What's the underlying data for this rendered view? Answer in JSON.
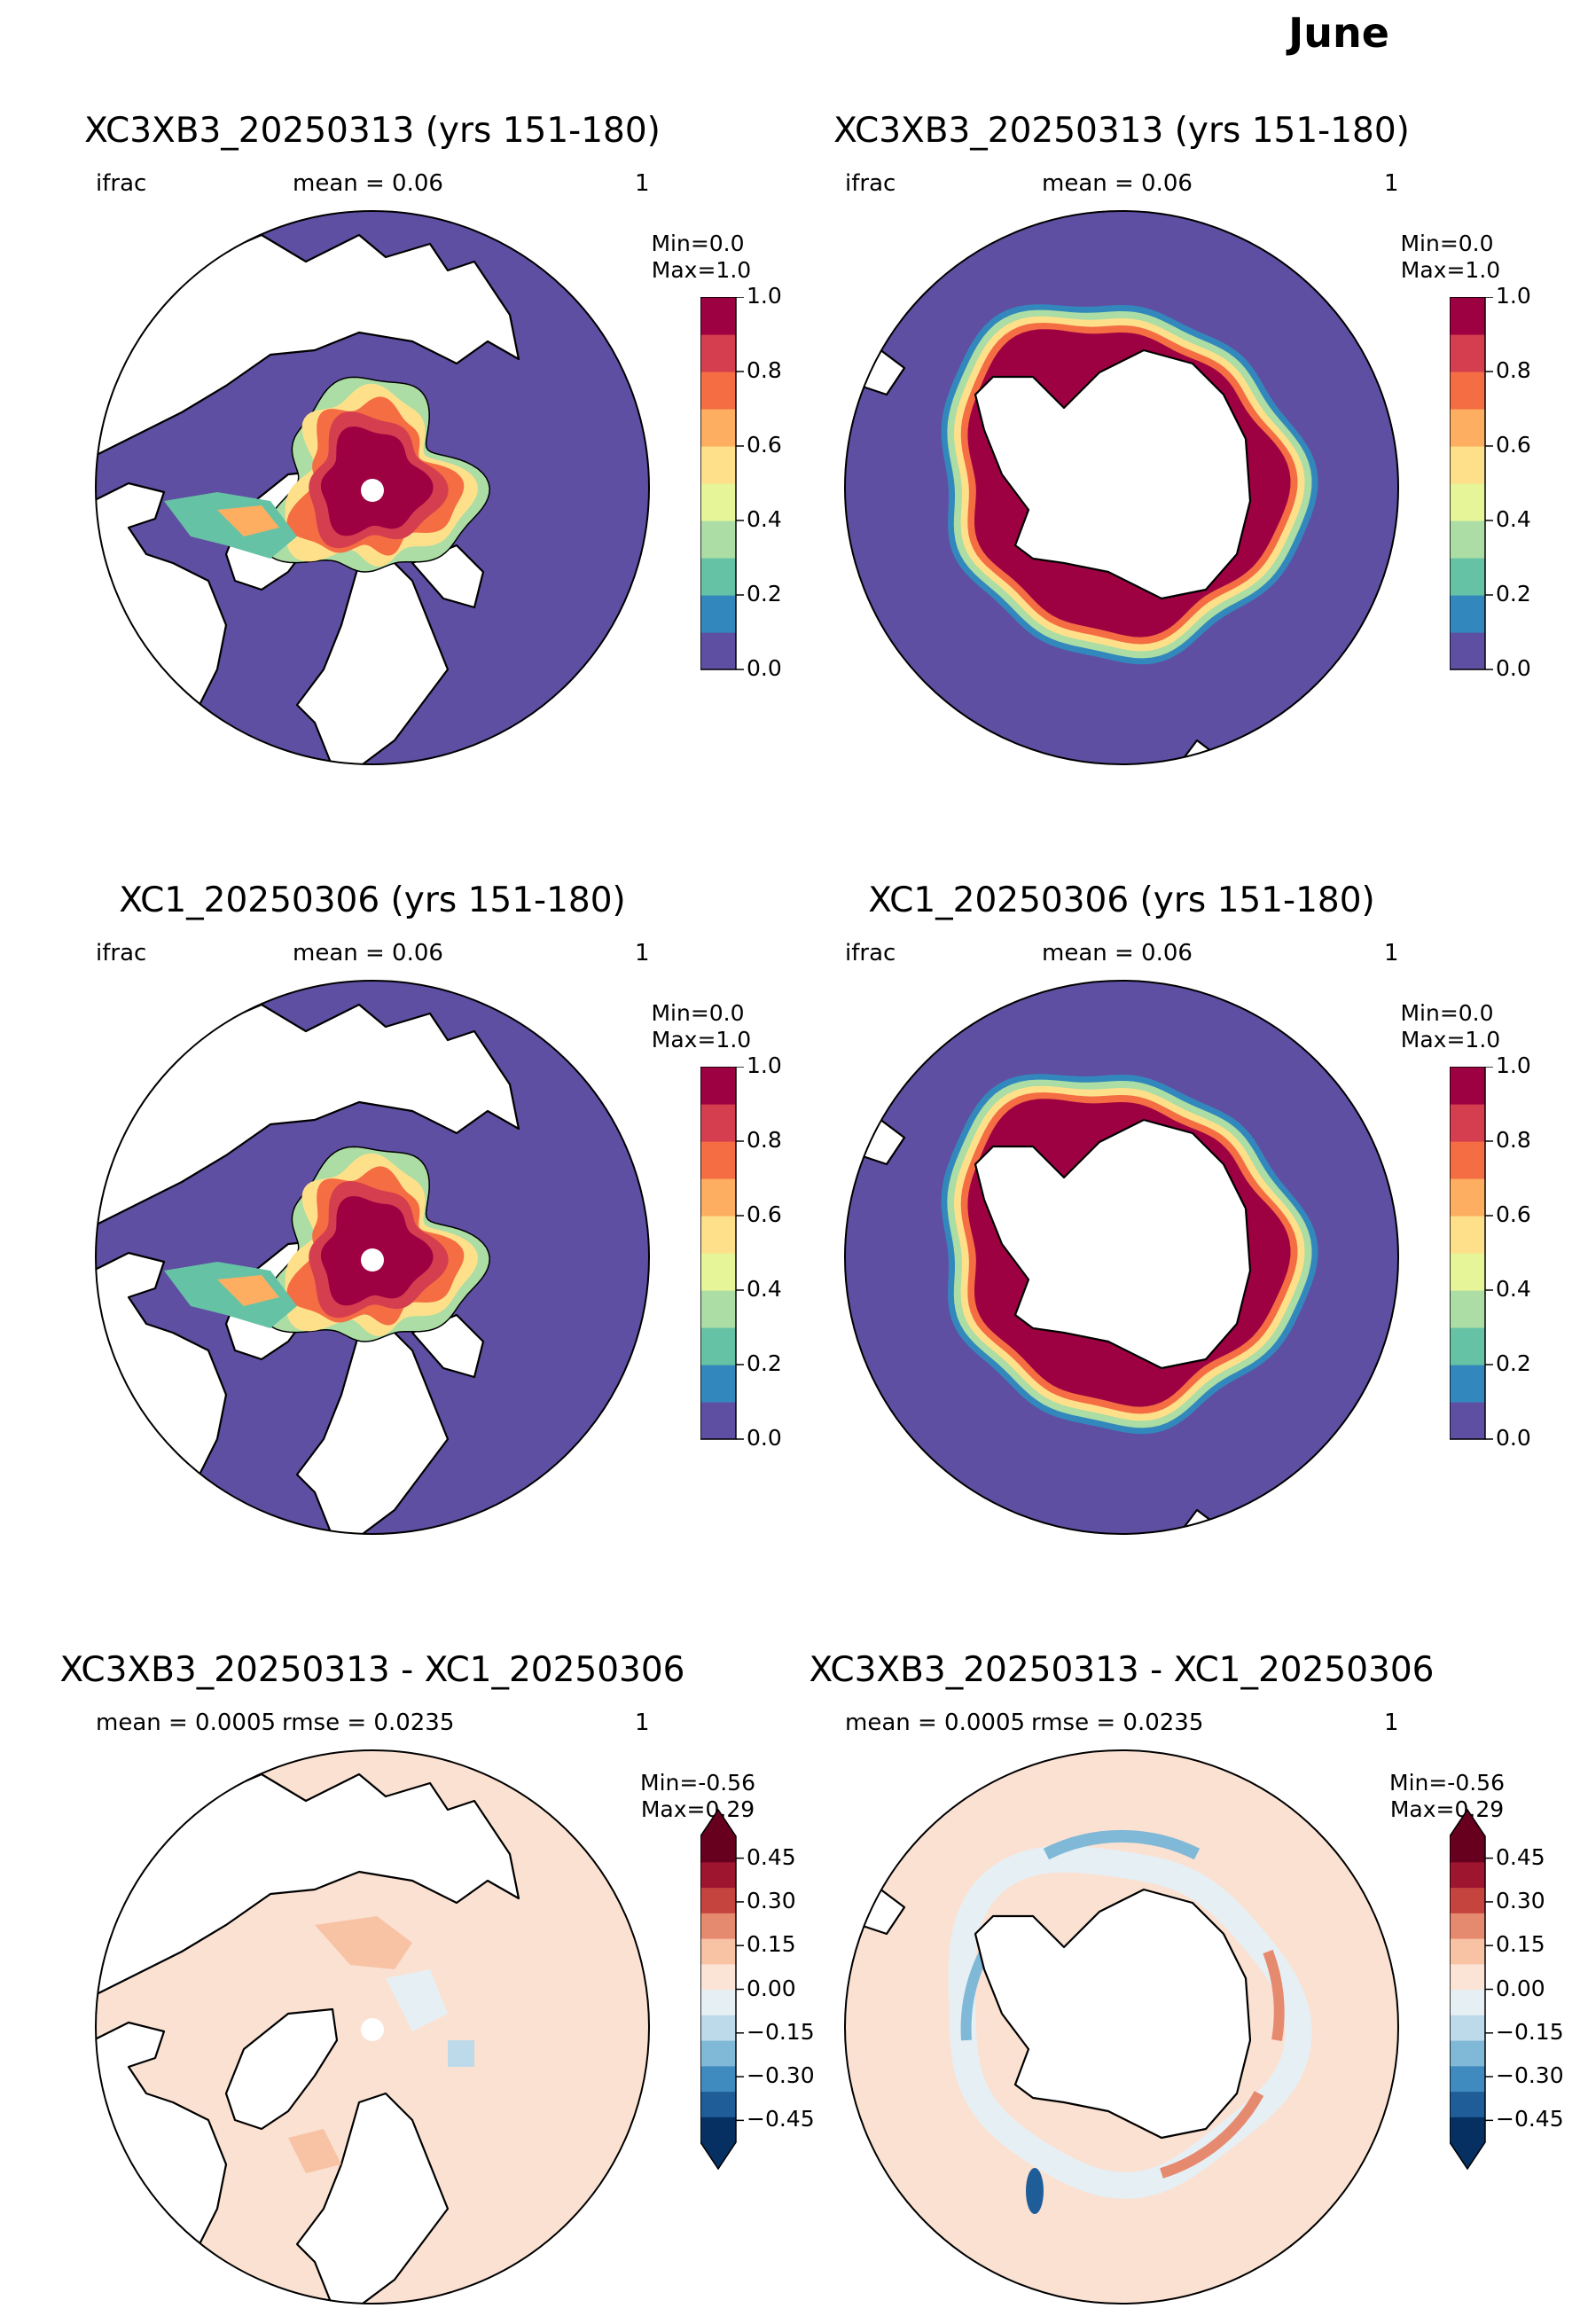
{
  "figure": {
    "title": "June"
  },
  "chart_data": [
    {
      "type": "heatmap",
      "hemisphere": "north",
      "title": "XC3XB3_20250313 (yrs 151-180)",
      "subtitle_left": "ifrac",
      "subtitle_center": "mean = 0.06",
      "subtitle_right": "1",
      "minmax": "Min=0.0\n Max=1.0",
      "colorbar": {
        "ticks": [
          "0.0",
          "0.2",
          "0.4",
          "0.6",
          "0.8",
          "1.0"
        ],
        "range": [
          0.0,
          1.0
        ]
      }
    },
    {
      "type": "heatmap",
      "hemisphere": "south",
      "title": "XC3XB3_20250313 (yrs 151-180)",
      "subtitle_left": "ifrac",
      "subtitle_center": "mean = 0.06",
      "subtitle_right": "1",
      "minmax": "Min=0.0\n Max=1.0",
      "colorbar": {
        "ticks": [
          "0.0",
          "0.2",
          "0.4",
          "0.6",
          "0.8",
          "1.0"
        ],
        "range": [
          0.0,
          1.0
        ]
      }
    },
    {
      "type": "heatmap",
      "hemisphere": "north",
      "title": "XC1_20250306 (yrs 151-180)",
      "subtitle_left": "ifrac",
      "subtitle_center": "mean = 0.06",
      "subtitle_right": "1",
      "minmax": "Min=0.0\n Max=1.0",
      "colorbar": {
        "ticks": [
          "0.0",
          "0.2",
          "0.4",
          "0.6",
          "0.8",
          "1.0"
        ],
        "range": [
          0.0,
          1.0
        ]
      }
    },
    {
      "type": "heatmap",
      "hemisphere": "south",
      "title": "XC1_20250306 (yrs 151-180)",
      "subtitle_left": "ifrac",
      "subtitle_center": "mean = 0.06",
      "subtitle_right": "1",
      "minmax": "Min=0.0\n Max=1.0",
      "colorbar": {
        "ticks": [
          "0.0",
          "0.2",
          "0.4",
          "0.6",
          "0.8",
          "1.0"
        ],
        "range": [
          0.0,
          1.0
        ]
      }
    },
    {
      "type": "heatmap",
      "hemisphere": "north",
      "title": "XC3XB3_20250313 - XC1_20250306",
      "subtitle_left": "mean = 0.0005",
      "subtitle_center": "rmse = 0.0235",
      "subtitle_right": "1",
      "minmax": "Min=-0.56\nMax=0.29",
      "colorbar": {
        "ticks": [
          "−0.45",
          "−0.30",
          "−0.15",
          "0.00",
          "0.15",
          "0.30",
          "0.45"
        ],
        "range": [
          -0.525,
          0.525
        ]
      }
    },
    {
      "type": "heatmap",
      "hemisphere": "south",
      "title": "XC3XB3_20250313 - XC1_20250306",
      "subtitle_left": "mean = 0.0005",
      "subtitle_center": "rmse = 0.0235",
      "subtitle_right": "1",
      "minmax": "Min=-0.56\nMax=0.29",
      "colorbar": {
        "ticks": [
          "−0.45",
          "−0.30",
          "−0.15",
          "0.00",
          "0.15",
          "0.30",
          "0.45"
        ],
        "range": [
          -0.525,
          0.525
        ]
      }
    }
  ],
  "colors": {
    "ice_levels": [
      "#5e4fa2",
      "#3288bd",
      "#66c2a5",
      "#abdda4",
      "#e6f598",
      "#fee08b",
      "#fdae61",
      "#f46d43",
      "#d53e4f",
      "#9e0142"
    ],
    "diff_levels": [
      "#053061",
      "#1f5d99",
      "#3f8bc0",
      "#80b8d7",
      "#bcdaea",
      "#e6eff4",
      "#fbe4d6",
      "#f8c2a5",
      "#e68a6f",
      "#c6443e",
      "#9e1530",
      "#67001f"
    ],
    "land": "#ffffff",
    "ocean_ice_free": "#5e4fa2",
    "diff_background": "#fbe1d2"
  }
}
